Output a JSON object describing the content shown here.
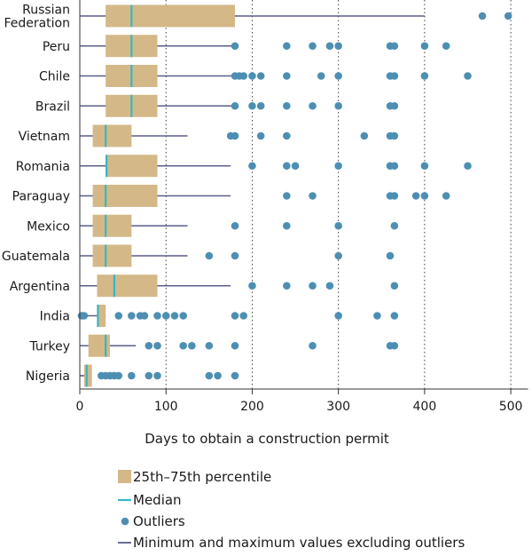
{
  "chart_data": {
    "type": "box",
    "orientation": "horizontal",
    "xlabel": "Days to obtain a construction permit",
    "xlim": [
      0,
      520
    ],
    "xticks": [
      0,
      100,
      200,
      300,
      400,
      500
    ],
    "grid": {
      "vertical_dotted_at": [
        100,
        200,
        300,
        400,
        500
      ]
    },
    "colors": {
      "box": "#d4b888",
      "median": "#35b8c6",
      "outlier": "#4d8fb3",
      "whisker": "#5a5f8a"
    },
    "categories": [
      {
        "label_lines": [
          "Russian",
          "Federation"
        ],
        "whisker_min": 0,
        "q1": 30,
        "median": 60,
        "q3": 180,
        "whisker_max": 400,
        "outliers": [
          467,
          497
        ]
      },
      {
        "label_lines": [
          "Peru"
        ],
        "whisker_min": 0,
        "q1": 30,
        "median": 60,
        "q3": 90,
        "whisker_max": 180,
        "outliers": [
          180,
          240,
          270,
          290,
          300,
          360,
          365,
          400,
          425
        ]
      },
      {
        "label_lines": [
          "Chile"
        ],
        "whisker_min": 0,
        "q1": 30,
        "median": 60,
        "q3": 90,
        "whisker_max": 180,
        "outliers": [
          180,
          185,
          190,
          200,
          210,
          240,
          280,
          300,
          360,
          365,
          400,
          450
        ]
      },
      {
        "label_lines": [
          "Brazil"
        ],
        "whisker_min": 0,
        "q1": 30,
        "median": 60,
        "q3": 90,
        "whisker_max": 180,
        "outliers": [
          180,
          200,
          210,
          240,
          270,
          300,
          360,
          365
        ]
      },
      {
        "label_lines": [
          "Vietnam"
        ],
        "whisker_min": 0,
        "q1": 15,
        "median": 30,
        "q3": 60,
        "whisker_max": 125,
        "outliers": [
          175,
          180,
          210,
          240,
          330,
          360,
          365
        ]
      },
      {
        "label_lines": [
          "Romania"
        ],
        "whisker_min": 0,
        "q1": 30,
        "median": 31,
        "q3": 90,
        "whisker_max": 175,
        "outliers": [
          200,
          240,
          250,
          300,
          360,
          365,
          400,
          450
        ]
      },
      {
        "label_lines": [
          "Paraguay"
        ],
        "whisker_min": 0,
        "q1": 15,
        "median": 30,
        "q3": 90,
        "whisker_max": 175,
        "outliers": [
          240,
          270,
          360,
          365,
          390,
          400,
          425
        ]
      },
      {
        "label_lines": [
          "Mexico"
        ],
        "whisker_min": 0,
        "q1": 15,
        "median": 30,
        "q3": 60,
        "whisker_max": 125,
        "outliers": [
          180,
          240,
          300,
          365
        ]
      },
      {
        "label_lines": [
          "Guatemala"
        ],
        "whisker_min": 0,
        "q1": 15,
        "median": 30,
        "q3": 60,
        "whisker_max": 125,
        "outliers": [
          150,
          180,
          300,
          360
        ]
      },
      {
        "label_lines": [
          "Argentina"
        ],
        "whisker_min": 0,
        "q1": 20,
        "median": 40,
        "q3": 90,
        "whisker_max": 175,
        "outliers": [
          200,
          240,
          270,
          290,
          365
        ]
      },
      {
        "label_lines": [
          "India"
        ],
        "whisker_min": 0,
        "q1": 20,
        "median": 21,
        "q3": 30,
        "whisker_max": 30,
        "outliers": [
          2,
          5,
          45,
          60,
          70,
          75,
          90,
          100,
          110,
          120,
          180,
          190,
          300,
          345,
          365
        ]
      },
      {
        "label_lines": [
          "Turkey"
        ],
        "whisker_min": 0,
        "q1": 10,
        "median": 30,
        "q3": 35,
        "whisker_max": 65,
        "outliers": [
          80,
          90,
          120,
          130,
          150,
          180,
          270,
          360,
          365
        ]
      },
      {
        "label_lines": [
          "Nigeria"
        ],
        "whisker_min": 0,
        "q1": 5,
        "median": 8,
        "q3": 14,
        "whisker_max": 14,
        "outliers": [
          25,
          30,
          35,
          40,
          45,
          60,
          80,
          90,
          150,
          160,
          180
        ]
      }
    ],
    "legend": {
      "position": "bottom",
      "items": [
        {
          "kind": "box",
          "label": "25th–75th percentile"
        },
        {
          "kind": "median",
          "label": "Median"
        },
        {
          "kind": "outlier",
          "label": "Outliers"
        },
        {
          "kind": "whisker",
          "label": "Minimum and maximum values excluding outliers"
        }
      ]
    }
  }
}
